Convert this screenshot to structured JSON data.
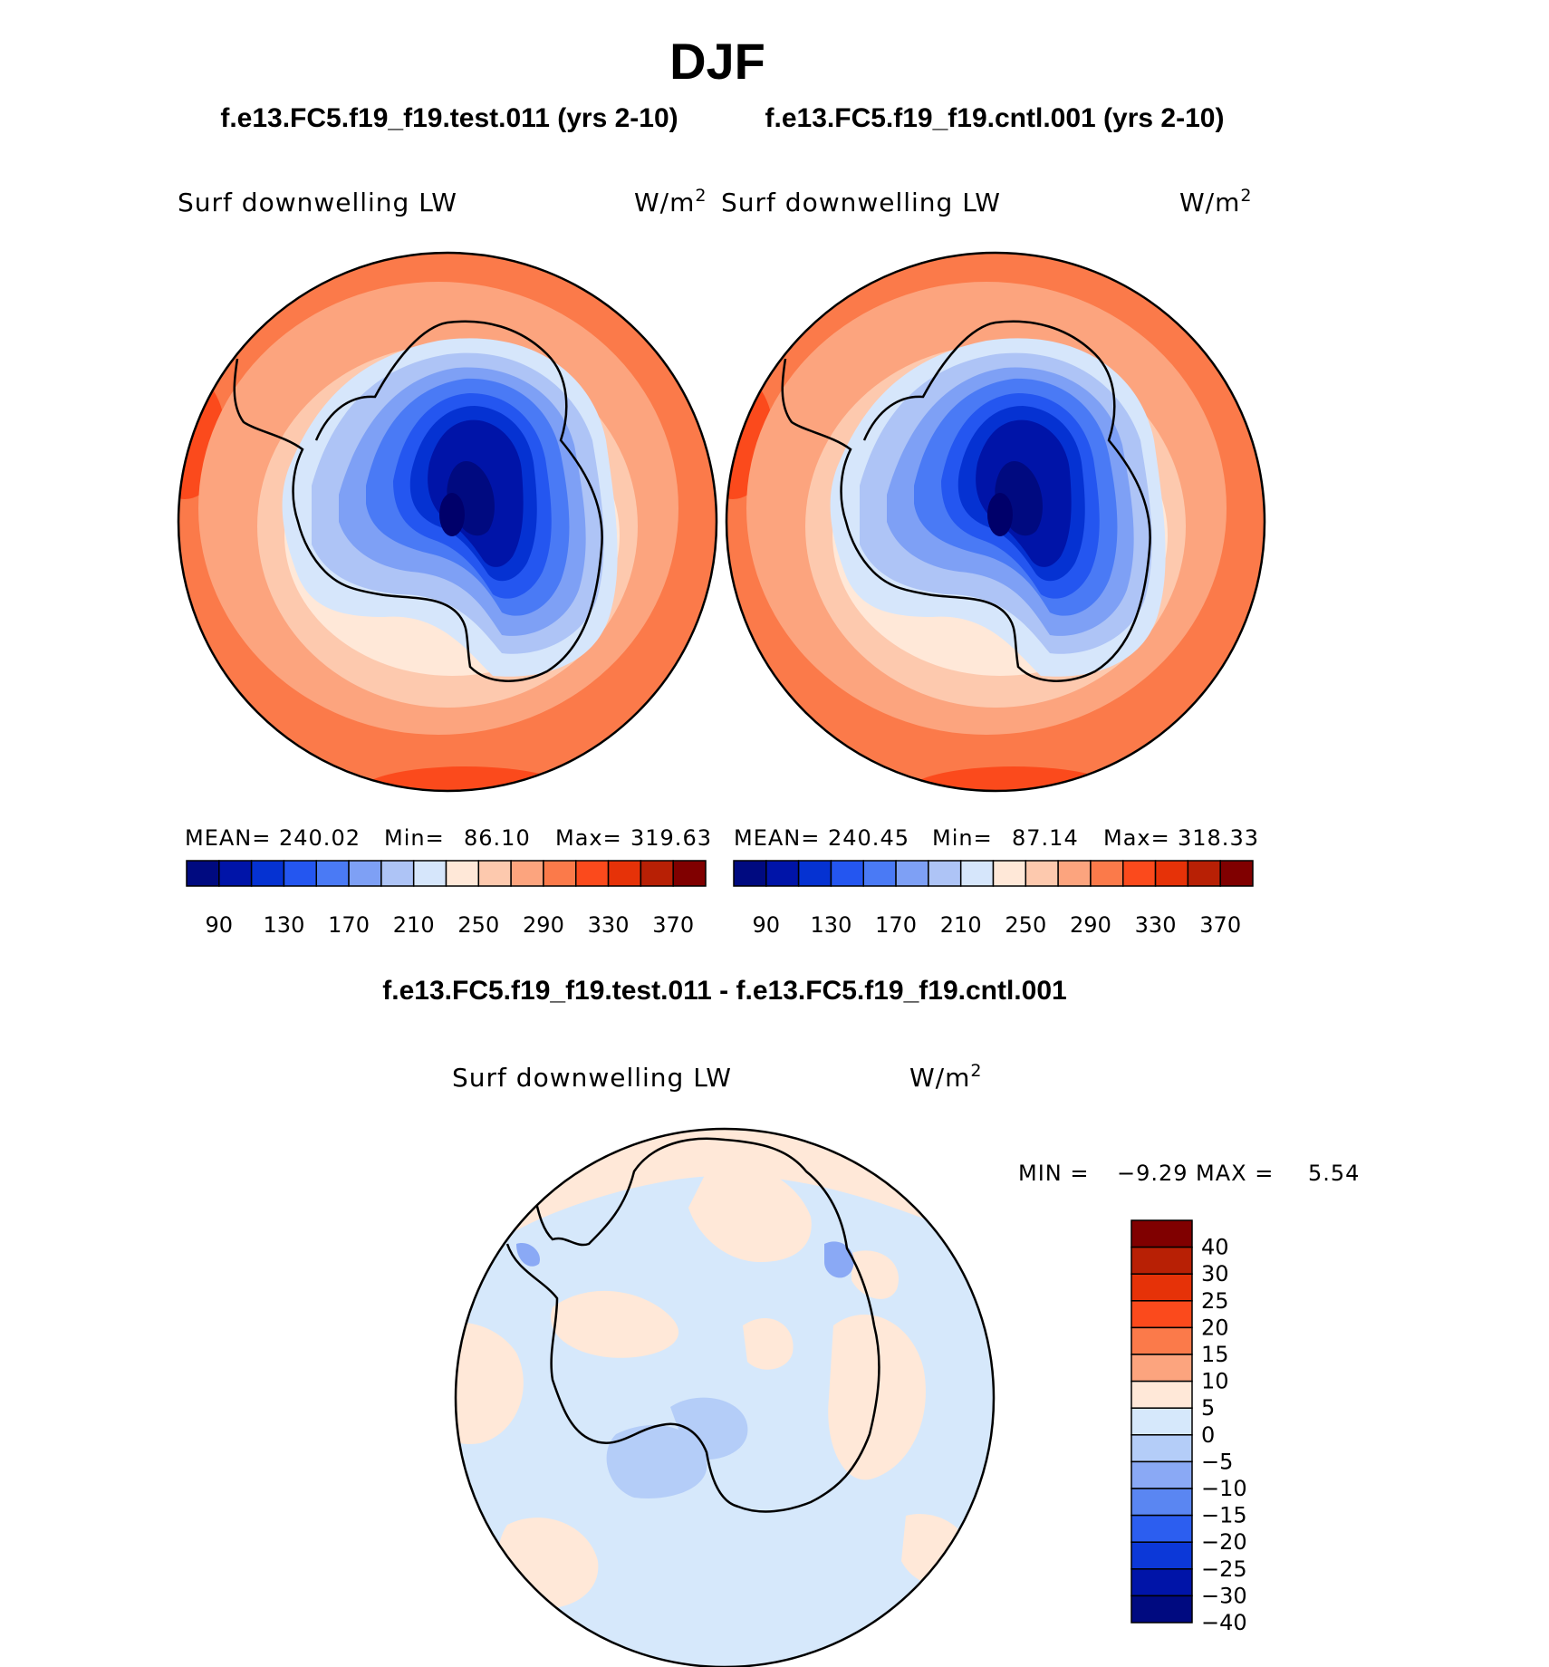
{
  "page": {
    "season": "DJF",
    "test_case": "f.e13.FC5.f19_f19.test.011 (yrs 2-10)",
    "control_case": "f.e13.FC5.f19_f19.cntl.001 (yrs 2-10)",
    "diff_title": "f.e13.FC5.f19_f19.test.011 - f.e13.FC5.f19_f19.cntl.001"
  },
  "panels": {
    "test": {
      "variable": "Surf downwelling LW",
      "units": "W/m",
      "units_exp": "2",
      "mean_label": "MEAN=",
      "mean": "240.02",
      "min_label": "Min=",
      "min": "86.10",
      "max_label": "Max=",
      "max": "319.63"
    },
    "control": {
      "variable": "Surf downwelling LW",
      "units": "W/m",
      "units_exp": "2",
      "mean_label": "MEAN=",
      "mean": "240.45",
      "min_label": "Min=",
      "min": "87.14",
      "max_label": "Max=",
      "max": "318.33"
    },
    "diff": {
      "variable": "Surf downwelling LW",
      "units": "W/m",
      "units_exp": "2",
      "min_label": "MIN =",
      "min": "−9.29",
      "max_label": "MAX =",
      "max": "5.54"
    }
  },
  "colorbars": {
    "abs_colors": [
      "#000a80",
      "#0014a8",
      "#0532d2",
      "#2456f0",
      "#4a7af5",
      "#7ea0f5",
      "#aec4f6",
      "#d6e6fb",
      "#ffe8d8",
      "#fdc9ae",
      "#fca47e",
      "#fb7a4a",
      "#fb4a1c",
      "#e63208",
      "#b82005",
      "#800000"
    ],
    "abs_ticks": [
      "90",
      "130",
      "170",
      "210",
      "250",
      "290",
      "330",
      "370"
    ],
    "diff_colors": [
      "#800000",
      "#b82005",
      "#e63208",
      "#fb4a1c",
      "#fb7a4a",
      "#fca47e",
      "#ffe8d8",
      "#d6e8fb",
      "#b4cdf8",
      "#8aa9f5",
      "#5a86f2",
      "#2c5ef0",
      "#0c38d8",
      "#0014a8",
      "#000a80"
    ],
    "diff_ticks": [
      "40",
      "30",
      "25",
      "20",
      "15",
      "10",
      "5",
      "0",
      "−5",
      "−10",
      "−15",
      "−20",
      "−25",
      "−30",
      "−40"
    ]
  }
}
